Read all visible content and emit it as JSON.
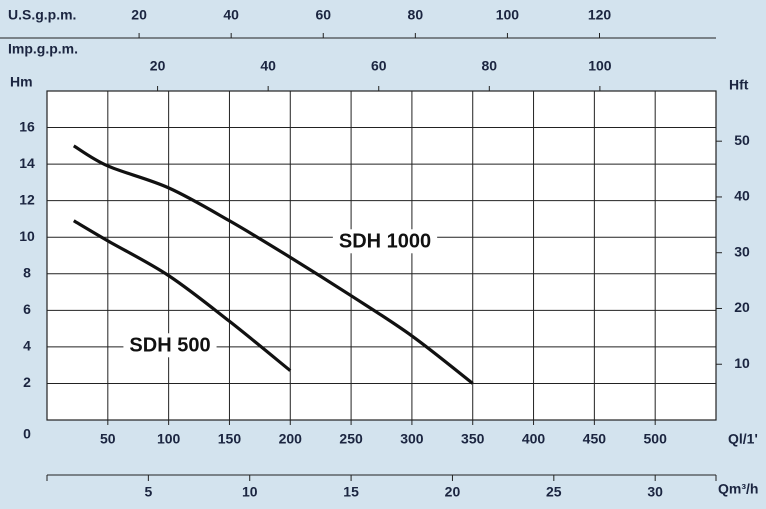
{
  "chart_data": {
    "type": "line",
    "x_label": "Ql/1'",
    "y_label": "Hm",
    "y2_label": "Hft",
    "xlim": [
      0,
      550
    ],
    "xticks": [
      50,
      100,
      150,
      200,
      250,
      300,
      350,
      400,
      450,
      500
    ],
    "ylim": [
      0,
      18
    ],
    "yticks": [
      0,
      2,
      4,
      6,
      8,
      10,
      12,
      14,
      16
    ],
    "y2lim": [
      0,
      59
    ],
    "y2ticks": [
      10,
      20,
      30,
      40,
      50
    ],
    "grid": true,
    "top_axes": [
      {
        "label": "U.S.g.p.m.",
        "xlim": [
          0,
          145.3
        ],
        "xticks": [
          20,
          40,
          60,
          80,
          100,
          120
        ]
      },
      {
        "label": "Imp.g.p.m.",
        "xlim": [
          0,
          121
        ],
        "xticks": [
          20,
          40,
          60,
          80,
          100
        ]
      }
    ],
    "bottom_axis": {
      "label": "Qm³/h",
      "xlim": [
        0,
        33
      ],
      "xticks": [
        5,
        10,
        15,
        20,
        25,
        30
      ]
    },
    "series": [
      {
        "name": "SDH 1000",
        "color": "#111111",
        "x": [
          22,
          50,
          100,
          150,
          200,
          250,
          300,
          350
        ],
        "values": [
          15,
          13.9,
          12.7,
          10.9,
          8.9,
          6.8,
          4.6,
          2
        ]
      },
      {
        "name": "SDH 500",
        "color": "#111111",
        "x": [
          22,
          50,
          100,
          150,
          200
        ],
        "values": [
          10.9,
          9.8,
          7.9,
          5.4,
          2.7
        ]
      }
    ]
  }
}
